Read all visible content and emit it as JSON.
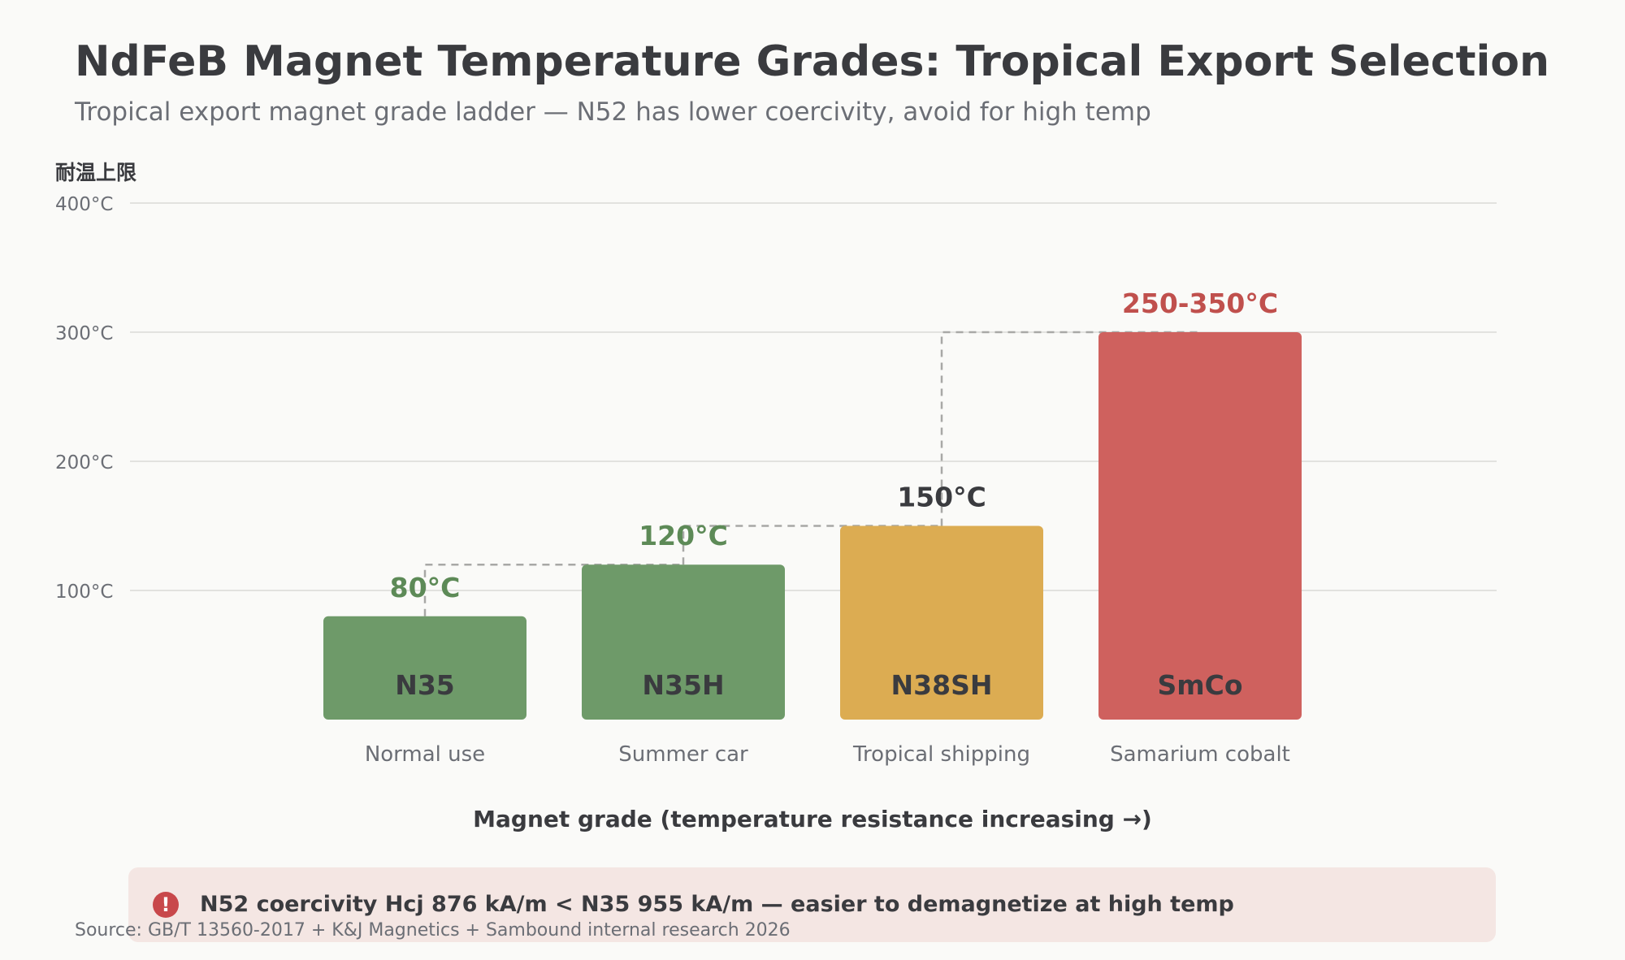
{
  "chart_data": {
    "type": "bar",
    "title": "NdFeB Magnet Temperature Grades: Tropical Export Selection",
    "subtitle": "Tropical export magnet grade ladder — N52 has lower coercivity, avoid for high temp",
    "ylabel": "耐温上限",
    "xlabel": "Magnet grade (temperature resistance increasing →)",
    "ylim": [
      0,
      400
    ],
    "yticks": [
      {
        "value": 100,
        "label": "100°C"
      },
      {
        "value": 200,
        "label": "200°C"
      },
      {
        "value": 300,
        "label": "300°C"
      },
      {
        "value": 400,
        "label": "400°C"
      }
    ],
    "grid": true,
    "categories": [
      "N35",
      "N35H",
      "N38SH",
      "SmCo"
    ],
    "category_descriptions": [
      "Normal use",
      "Summer car",
      "Tropical shipping",
      "Samarium cobalt"
    ],
    "values": [
      80,
      120,
      150,
      300
    ],
    "value_labels": [
      "80°C",
      "120°C",
      "150°C",
      "250-350°C"
    ],
    "bar_colors": [
      "#6e9a69",
      "#6e9a69",
      "#dcac52",
      "#cf615e"
    ],
    "label_colors": [
      "#5d8a57",
      "#5d8a57",
      "#3a3b3f",
      "#c0504d"
    ],
    "connector": "dashed step line linking bar tops"
  },
  "alert": {
    "icon": "exclamation-icon",
    "icon_glyph": "!",
    "text": "N52 coercivity Hcj 876 kA/m < N35 955 kA/m — easier to demagnetize at high temp"
  },
  "source": "Source: GB/T 13560-2017 + K&J Magnetics + Sambound internal research 2026"
}
